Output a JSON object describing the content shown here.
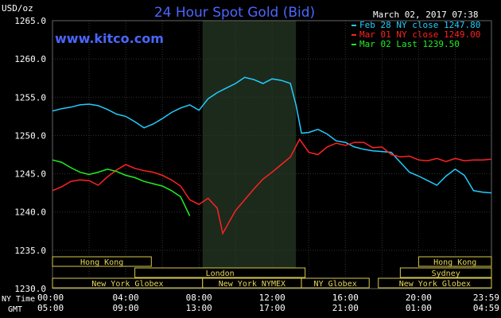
{
  "chart_data": {
    "type": "line",
    "title": "24 Hour Spot Gold (Bid)",
    "watermark": "www.kitco.com",
    "date_label": "March 02, 2017 07:38",
    "y_unit": "USD/oz",
    "ylim": [
      1230,
      1265
    ],
    "y_ticks": [
      "1265.0",
      "1260.0",
      "1255.0",
      "1250.0",
      "1245.0",
      "1240.0",
      "1235.0",
      "1230.0"
    ],
    "y_tick_values": [
      1265,
      1260,
      1255,
      1250,
      1245,
      1240,
      1235,
      1230
    ],
    "x_row_label_ny": "NY Time",
    "x_row_label_gmt": "GMT",
    "x_ticks_ny": [
      "00:00",
      "04:00",
      "08:00",
      "12:00",
      "16:00",
      "20:00",
      "23:59"
    ],
    "x_ticks_gmt": [
      "05:00",
      "09:00",
      "13:00",
      "17:00",
      "21:00",
      "01:00",
      "04:59"
    ],
    "x_tick_hours": [
      0,
      4,
      8,
      12,
      16,
      20,
      23.98
    ],
    "shaded_hours": [
      8.2,
      13.3
    ],
    "grid": true,
    "legend_position": "top-right",
    "colors": {
      "background": "#000000",
      "grid": "#333333",
      "shaded": "#1c2a1c",
      "title": "#4a66ff",
      "text": "#ffffff",
      "session_fill": "#000000",
      "session_border": "#d8c84a",
      "session_text": "#e6d65c"
    },
    "series": [
      {
        "name": "Feb 28 NY close 1247.80",
        "color": "#22ccff",
        "x": [
          0,
          0.5,
          1,
          1.5,
          2,
          2.5,
          3,
          3.5,
          4,
          4.5,
          5,
          5.5,
          6,
          6.5,
          7,
          7.5,
          8,
          8.5,
          9,
          9.5,
          10,
          10.5,
          11,
          11.5,
          12,
          12.5,
          13,
          13.3,
          13.6,
          14,
          14.5,
          15,
          15.5,
          16,
          16.5,
          17,
          17.5,
          18,
          18.5,
          19,
          19.5,
          20,
          20.5,
          21,
          21.5,
          22,
          22.5,
          23,
          23.5,
          23.98
        ],
        "values": [
          1253.2,
          1253.5,
          1253.7,
          1254.0,
          1254.1,
          1253.9,
          1253.4,
          1252.8,
          1252.5,
          1251.8,
          1251.0,
          1251.5,
          1252.2,
          1253.0,
          1253.6,
          1254.0,
          1253.3,
          1254.8,
          1255.6,
          1256.2,
          1256.8,
          1257.6,
          1257.3,
          1256.8,
          1257.4,
          1257.2,
          1256.8,
          1254.0,
          1250.3,
          1250.4,
          1250.8,
          1250.2,
          1249.3,
          1249.1,
          1248.5,
          1248.2,
          1248.0,
          1247.9,
          1247.8,
          1246.5,
          1245.2,
          1244.7,
          1244.1,
          1243.5,
          1244.7,
          1245.6,
          1244.8,
          1242.8,
          1242.6,
          1242.5
        ]
      },
      {
        "name": "Mar 01 NY close 1249.00",
        "color": "#ff2222",
        "x": [
          0,
          0.5,
          1,
          1.5,
          2,
          2.5,
          3,
          3.5,
          4,
          4.5,
          5,
          5.5,
          6,
          6.5,
          7,
          7.5,
          8,
          8.5,
          9,
          9.3,
          9.6,
          10,
          10.5,
          11,
          11.5,
          12,
          12.5,
          13,
          13.5,
          14,
          14.5,
          15,
          15.5,
          16,
          16.5,
          17,
          17.5,
          18,
          18.5,
          19,
          19.5,
          20,
          20.5,
          21,
          21.5,
          22,
          22.5,
          23,
          23.5,
          23.98
        ],
        "values": [
          1242.8,
          1243.3,
          1244.0,
          1244.2,
          1244.1,
          1243.5,
          1244.6,
          1245.5,
          1246.2,
          1245.7,
          1245.4,
          1245.2,
          1244.8,
          1244.2,
          1243.4,
          1241.6,
          1241.0,
          1241.8,
          1240.5,
          1237.2,
          1238.5,
          1240.2,
          1241.6,
          1243.0,
          1244.3,
          1245.2,
          1246.2,
          1247.2,
          1249.5,
          1247.8,
          1247.5,
          1248.5,
          1249.0,
          1248.7,
          1249.1,
          1249.1,
          1248.4,
          1248.5,
          1247.5,
          1247.2,
          1247.3,
          1246.8,
          1246.7,
          1247.0,
          1246.6,
          1247.0,
          1246.7,
          1246.8,
          1246.8,
          1246.9
        ]
      },
      {
        "name": "Mar 02 Last 1239.50",
        "color": "#22ee22",
        "x": [
          0,
          0.5,
          1,
          1.5,
          2,
          2.5,
          3,
          3.5,
          4,
          4.5,
          5,
          5.5,
          6,
          6.5,
          7,
          7.5
        ],
        "values": [
          1246.8,
          1246.5,
          1245.8,
          1245.2,
          1244.9,
          1245.2,
          1245.6,
          1245.3,
          1244.8,
          1244.5,
          1244.0,
          1243.7,
          1243.4,
          1242.8,
          1242.0,
          1239.5
        ]
      }
    ],
    "sessions": [
      {
        "label": "Hong Kong",
        "start": 0,
        "end": 5.4,
        "row": 0
      },
      {
        "label": "Hong Kong",
        "start": 20.0,
        "end": 23.98,
        "row": 0
      },
      {
        "label": "London",
        "start": 4.5,
        "end": 13.8,
        "row": 1
      },
      {
        "label": "Sydney",
        "start": 19.0,
        "end": 23.98,
        "row": 1
      },
      {
        "label": "New York Globex",
        "start": 0,
        "end": 8.2,
        "row": 2
      },
      {
        "label": "New York NYMEX",
        "start": 8.2,
        "end": 13.6,
        "row": 2
      },
      {
        "label": "NY Globex",
        "start": 13.6,
        "end": 17.3,
        "row": 2
      },
      {
        "label": "New York Globex",
        "start": 17.8,
        "end": 23.98,
        "row": 2
      }
    ]
  }
}
